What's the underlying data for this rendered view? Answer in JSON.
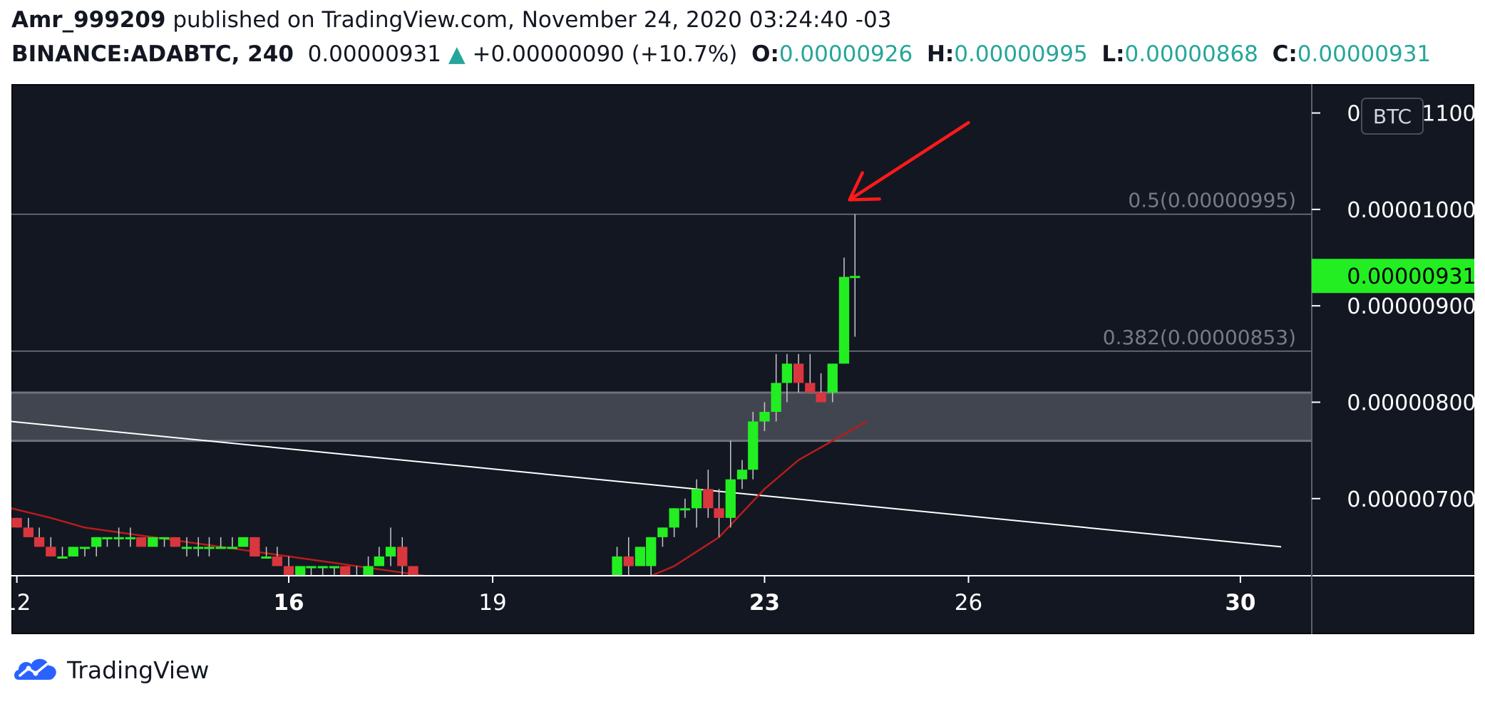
{
  "header": {
    "author": "Amr_999209",
    "published_text": "published on TradingView.com, November 24, 2020 03:24:40 -03",
    "symbol": "BINANCE:ADABTC, 240",
    "last_price": "0.00000931",
    "change_arrow": "▲",
    "change": "+0.00000090 (+10.7%)",
    "o_label": "O:",
    "o_value": "0.00000926",
    "h_label": "H:",
    "h_value": "0.00000995",
    "l_label": "L:",
    "l_value": "0.00000868",
    "c_label": "C:",
    "c_value": "0.00000931"
  },
  "footer": {
    "brand": "TradingView",
    "logo_icon": "tradingview-cloud-logo-icon"
  },
  "colors": {
    "background": "#131722",
    "up": "#22ee22",
    "down": "#d9363e",
    "ma": "#b71c1c",
    "trendline": "#ffffff",
    "fib": "#787b86",
    "zone": "#4a4d57",
    "price_badge": "#22ee22",
    "arrow": "#ff1a1a",
    "header_value": "#26a69a"
  },
  "chart_data": {
    "type": "candlestick",
    "currency_label": "BTC",
    "ylim": [
      6.2e-06,
      1.13e-05
    ],
    "y_ticks": [
      {
        "value": 1.1e-05,
        "label": "0.00001100"
      },
      {
        "value": 1e-05,
        "label": "0.00001000"
      },
      {
        "value": 9e-06,
        "label": "0.00000900"
      },
      {
        "value": 8e-06,
        "label": "0.00000800"
      },
      {
        "value": 7e-06,
        "label": "0.00000700"
      }
    ],
    "x_range": [
      11.92,
      31.05
    ],
    "x_ticks": [
      {
        "value": 12,
        "label": "12",
        "bold": false
      },
      {
        "value": 16,
        "label": "16",
        "bold": true
      },
      {
        "value": 19,
        "label": "19",
        "bold": false
      },
      {
        "value": 23,
        "label": "23",
        "bold": true
      },
      {
        "value": 26,
        "label": "26",
        "bold": false
      },
      {
        "value": 30,
        "label": "30",
        "bold": true
      }
    ],
    "last_price": {
      "value": 9.31e-06,
      "label": "0.00000931"
    },
    "fib_levels": [
      {
        "ratio": "0.5",
        "value": 9.95e-06,
        "label": "0.5(0.00000995)"
      },
      {
        "ratio": "0.382",
        "value": 8.53e-06,
        "label": "0.382(0.00000853)"
      }
    ],
    "support_zone": {
      "low": 7.6e-06,
      "high": 8.1e-06
    },
    "trendline": {
      "start": {
        "x": 11.92,
        "y": 7.8e-06
      },
      "end": {
        "x": 30.6,
        "y": 6.5e-06
      }
    },
    "candles": [
      {
        "x": 12.0,
        "o": 6.8e-06,
        "h": 6.8e-06,
        "l": 6.7e-06,
        "c": 6.7e-06
      },
      {
        "x": 12.17,
        "o": 6.7e-06,
        "h": 6.8e-06,
        "l": 6.6e-06,
        "c": 6.6e-06
      },
      {
        "x": 12.33,
        "o": 6.6e-06,
        "h": 6.7e-06,
        "l": 6.5e-06,
        "c": 6.5e-06
      },
      {
        "x": 12.5,
        "o": 6.5e-06,
        "h": 6.6e-06,
        "l": 6.4e-06,
        "c": 6.4e-06
      },
      {
        "x": 12.67,
        "o": 6.4e-06,
        "h": 6.5e-06,
        "l": 6.4e-06,
        "c": 6.4e-06
      },
      {
        "x": 12.83,
        "o": 6.4e-06,
        "h": 6.5e-06,
        "l": 6.4e-06,
        "c": 6.5e-06
      },
      {
        "x": 13.0,
        "o": 6.5e-06,
        "h": 6.5e-06,
        "l": 6.4e-06,
        "c": 6.5e-06
      },
      {
        "x": 13.17,
        "o": 6.5e-06,
        "h": 6.6e-06,
        "l": 6.4e-06,
        "c": 6.6e-06
      },
      {
        "x": 13.33,
        "o": 6.6e-06,
        "h": 6.6e-06,
        "l": 6.5e-06,
        "c": 6.6e-06
      },
      {
        "x": 13.5,
        "o": 6.6e-06,
        "h": 6.7e-06,
        "l": 6.5e-06,
        "c": 6.6e-06
      },
      {
        "x": 13.67,
        "o": 6.6e-06,
        "h": 6.7e-06,
        "l": 6.5e-06,
        "c": 6.6e-06
      },
      {
        "x": 13.83,
        "o": 6.6e-06,
        "h": 6.6e-06,
        "l": 6.5e-06,
        "c": 6.5e-06
      },
      {
        "x": 14.0,
        "o": 6.5e-06,
        "h": 6.6e-06,
        "l": 6.5e-06,
        "c": 6.6e-06
      },
      {
        "x": 14.17,
        "o": 6.6e-06,
        "h": 6.6e-06,
        "l": 6.5e-06,
        "c": 6.6e-06
      },
      {
        "x": 14.33,
        "o": 6.6e-06,
        "h": 6.6e-06,
        "l": 6.5e-06,
        "c": 6.5e-06
      },
      {
        "x": 14.5,
        "o": 6.5e-06,
        "h": 6.6e-06,
        "l": 6.4e-06,
        "c": 6.5e-06
      },
      {
        "x": 14.67,
        "o": 6.5e-06,
        "h": 6.6e-06,
        "l": 6.4e-06,
        "c": 6.5e-06
      },
      {
        "x": 14.83,
        "o": 6.5e-06,
        "h": 6.6e-06,
        "l": 6.4e-06,
        "c": 6.5e-06
      },
      {
        "x": 15.0,
        "o": 6.5e-06,
        "h": 6.6e-06,
        "l": 6.5e-06,
        "c": 6.5e-06
      },
      {
        "x": 15.17,
        "o": 6.5e-06,
        "h": 6.6e-06,
        "l": 6.5e-06,
        "c": 6.5e-06
      },
      {
        "x": 15.33,
        "o": 6.5e-06,
        "h": 6.6e-06,
        "l": 6.5e-06,
        "c": 6.6e-06
      },
      {
        "x": 15.5,
        "o": 6.6e-06,
        "h": 6.6e-06,
        "l": 6.4e-06,
        "c": 6.4e-06
      },
      {
        "x": 15.67,
        "o": 6.4e-06,
        "h": 6.5e-06,
        "l": 6.4e-06,
        "c": 6.4e-06
      },
      {
        "x": 15.83,
        "o": 6.4e-06,
        "h": 6.5e-06,
        "l": 6.3e-06,
        "c": 6.3e-06
      },
      {
        "x": 16.0,
        "o": 6.3e-06,
        "h": 6.4e-06,
        "l": 6.2e-06,
        "c": 6.2e-06
      },
      {
        "x": 16.17,
        "o": 6.2e-06,
        "h": 6.3e-06,
        "l": 6.2e-06,
        "c": 6.3e-06
      },
      {
        "x": 16.33,
        "o": 6.3e-06,
        "h": 6.3e-06,
        "l": 6.2e-06,
        "c": 6.3e-06
      },
      {
        "x": 16.5,
        "o": 6.3e-06,
        "h": 6.3e-06,
        "l": 6.2e-06,
        "c": 6.3e-06
      },
      {
        "x": 16.67,
        "o": 6.3e-06,
        "h": 6.3e-06,
        "l": 6.2e-06,
        "c": 6.3e-06
      },
      {
        "x": 16.83,
        "o": 6.3e-06,
        "h": 6.3e-06,
        "l": 6.1e-06,
        "c": 6.1e-06
      },
      {
        "x": 17.0,
        "o": 6.1e-06,
        "h": 6.3e-06,
        "l": 6.1e-06,
        "c": 6.1e-06
      },
      {
        "x": 17.17,
        "o": 6.1e-06,
        "h": 6.4e-06,
        "l": 6.1e-06,
        "c": 6.3e-06
      },
      {
        "x": 17.33,
        "o": 6.3e-06,
        "h": 6.5e-06,
        "l": 6.3e-06,
        "c": 6.4e-06
      },
      {
        "x": 17.5,
        "o": 6.4e-06,
        "h": 6.7e-06,
        "l": 6.3e-06,
        "c": 6.5e-06
      },
      {
        "x": 17.67,
        "o": 6.5e-06,
        "h": 6.6e-06,
        "l": 6.2e-06,
        "c": 6.3e-06
      },
      {
        "x": 17.83,
        "o": 6.3e-06,
        "h": 6.3e-06,
        "l": 6.1e-06,
        "c": 6.2e-06
      },
      {
        "x": 18.0,
        "o": 6.2e-06,
        "h": 6.2e-06,
        "l": 6.1e-06,
        "c": 6.1e-06
      },
      {
        "x": 18.17,
        "o": 6.1e-06,
        "h": 6.2e-06,
        "l": 6e-06,
        "c": 6e-06
      },
      {
        "x": 18.33,
        "o": 6e-06,
        "h": 6.1e-06,
        "l": 5.9e-06,
        "c": 5.9e-06
      },
      {
        "x": 20.83,
        "o": 6.1e-06,
        "h": 6.5e-06,
        "l": 5.8e-06,
        "c": 6.4e-06
      },
      {
        "x": 21.0,
        "o": 6.4e-06,
        "h": 6.6e-06,
        "l": 6.2e-06,
        "c": 6.3e-06
      },
      {
        "x": 21.17,
        "o": 6.3e-06,
        "h": 6.5e-06,
        "l": 6.3e-06,
        "c": 6.5e-06
      },
      {
        "x": 21.33,
        "o": 6.3e-06,
        "h": 6.6e-06,
        "l": 6.2e-06,
        "c": 6.6e-06
      },
      {
        "x": 21.5,
        "o": 6.6e-06,
        "h": 6.7e-06,
        "l": 6.5e-06,
        "c": 6.7e-06
      },
      {
        "x": 21.67,
        "o": 6.7e-06,
        "h": 6.9e-06,
        "l": 6.6e-06,
        "c": 6.9e-06
      },
      {
        "x": 21.83,
        "o": 6.9e-06,
        "h": 7e-06,
        "l": 6.8e-06,
        "c": 6.9e-06
      },
      {
        "x": 22.0,
        "o": 6.9e-06,
        "h": 7.2e-06,
        "l": 6.7e-06,
        "c": 7.1e-06
      },
      {
        "x": 22.17,
        "o": 7.1e-06,
        "h": 7.3e-06,
        "l": 6.8e-06,
        "c": 6.9e-06
      },
      {
        "x": 22.33,
        "o": 6.9e-06,
        "h": 7.1e-06,
        "l": 6.6e-06,
        "c": 6.8e-06
      },
      {
        "x": 22.5,
        "o": 6.8e-06,
        "h": 7.6e-06,
        "l": 6.7e-06,
        "c": 7.2e-06
      },
      {
        "x": 22.67,
        "o": 7.2e-06,
        "h": 7.4e-06,
        "l": 7.1e-06,
        "c": 7.3e-06
      },
      {
        "x": 22.83,
        "o": 7.3e-06,
        "h": 7.9e-06,
        "l": 7.2e-06,
        "c": 7.8e-06
      },
      {
        "x": 23.0,
        "o": 7.8e-06,
        "h": 8e-06,
        "l": 7.7e-06,
        "c": 7.9e-06
      },
      {
        "x": 23.17,
        "o": 7.9e-06,
        "h": 8.5e-06,
        "l": 7.8e-06,
        "c": 8.2e-06
      },
      {
        "x": 23.33,
        "o": 8.2e-06,
        "h": 8.5e-06,
        "l": 8e-06,
        "c": 8.4e-06
      },
      {
        "x": 23.5,
        "o": 8.4e-06,
        "h": 8.5e-06,
        "l": 8.1e-06,
        "c": 8.2e-06
      },
      {
        "x": 23.67,
        "o": 8.2e-06,
        "h": 8.5e-06,
        "l": 8.1e-06,
        "c": 8.1e-06
      },
      {
        "x": 23.83,
        "o": 8.1e-06,
        "h": 8.3e-06,
        "l": 8e-06,
        "c": 8e-06
      },
      {
        "x": 24.0,
        "o": 8.1e-06,
        "h": 8.4e-06,
        "l": 8e-06,
        "c": 8.4e-06
      },
      {
        "x": 24.17,
        "o": 8.4e-06,
        "h": 9.5e-06,
        "l": 8.4e-06,
        "c": 9.3e-06
      },
      {
        "x": 24.33,
        "o": 9.3e-06,
        "h": 9.95e-06,
        "l": 8.68e-06,
        "c": 9.31e-06
      }
    ],
    "ma": [
      {
        "x": 11.92,
        "y": 6.9e-06
      },
      {
        "x": 12.5,
        "y": 6.8e-06
      },
      {
        "x": 13.0,
        "y": 6.7e-06
      },
      {
        "x": 14.0,
        "y": 6.6e-06
      },
      {
        "x": 15.0,
        "y": 6.5e-06
      },
      {
        "x": 16.0,
        "y": 6.4e-06
      },
      {
        "x": 17.0,
        "y": 6.3e-06
      },
      {
        "x": 18.0,
        "y": 6.2e-06
      },
      {
        "x": 19.0,
        "y": 6.1e-06
      },
      {
        "x": 20.0,
        "y": 6e-06
      },
      {
        "x": 21.0,
        "y": 6.1e-06
      },
      {
        "x": 21.67,
        "y": 6.3e-06
      },
      {
        "x": 22.33,
        "y": 6.6e-06
      },
      {
        "x": 23.0,
        "y": 7.1e-06
      },
      {
        "x": 23.5,
        "y": 7.4e-06
      },
      {
        "x": 24.0,
        "y": 7.6e-06
      },
      {
        "x": 24.5,
        "y": 7.8e-06
      }
    ],
    "annotation_arrow": {
      "from": {
        "x": 26.0,
        "y": 1.09e-05
      },
      "to": {
        "x": 24.25,
        "y": 1.01e-05
      }
    }
  }
}
